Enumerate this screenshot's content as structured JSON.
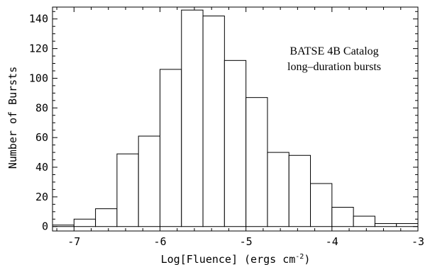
{
  "chart_data": {
    "type": "bar",
    "title": "",
    "xlabel": "Log[Fluence] (ergs cm",
    "xlabel_sup": "-2",
    "xlabel_close": ")",
    "ylabel": "Number of Bursts",
    "xlim": [
      -7.25,
      -3.0
    ],
    "ylim": [
      -3,
      148
    ],
    "bin_width": 0.25,
    "bin_starts": [
      -7.25,
      -7.0,
      -6.75,
      -6.5,
      -6.25,
      -6.0,
      -5.75,
      -5.5,
      -5.25,
      -5.0,
      -4.75,
      -4.5,
      -4.25,
      -4.0,
      -3.75,
      -3.5,
      -3.25
    ],
    "values": [
      1,
      5,
      12,
      49,
      61,
      106,
      146,
      142,
      112,
      87,
      50,
      48,
      29,
      13,
      7,
      2,
      2
    ],
    "x_ticks": [
      -7,
      -6,
      -5,
      -4,
      -3
    ],
    "x_tick_labels": [
      "-7",
      "-6",
      "-5",
      "-4",
      "-3"
    ],
    "y_ticks": [
      0,
      20,
      40,
      60,
      80,
      100,
      120,
      140
    ],
    "y_tick_labels": [
      "0",
      "20",
      "40",
      "60",
      "80",
      "100",
      "120",
      "140"
    ],
    "annotations": [
      "BATSE 4B Catalog",
      "long–duration bursts"
    ],
    "grid": false,
    "legend": "none"
  }
}
